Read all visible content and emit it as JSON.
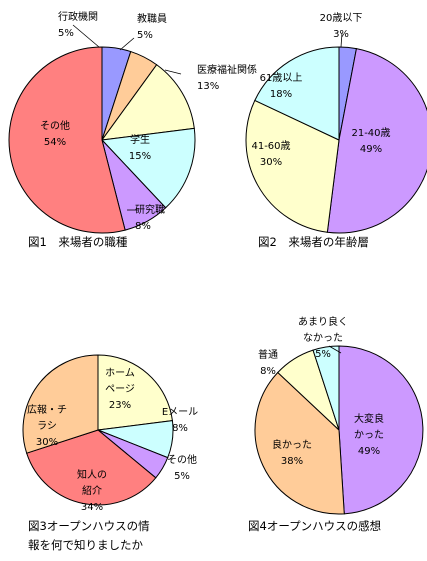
{
  "chart_data": [
    {
      "type": "pie",
      "title": "図1　来場者の職種",
      "slices": [
        {
          "label": "行政機関",
          "value": 5,
          "display": "5%",
          "color": "#9999ff"
        },
        {
          "label": "教職員",
          "value": 5,
          "display": "5%",
          "color": "#ffcc99"
        },
        {
          "label": "医療福祉関係",
          "value": 13,
          "display": "13%",
          "color": "#ffffcc"
        },
        {
          "label": "学生",
          "value": 15,
          "display": "15%",
          "color": "#ccffff"
        },
        {
          "label": "研究職",
          "value": 8,
          "display": "8%",
          "color": "#cc99ff"
        },
        {
          "label": "その他",
          "value": 54,
          "display": "54%",
          "color": "#ff8080"
        }
      ]
    },
    {
      "type": "pie",
      "title": "図2　来場者の年齢層",
      "slices": [
        {
          "label": "20歳以下",
          "value": 3,
          "display": "3%",
          "color": "#9999ff"
        },
        {
          "label": "21-40歳",
          "value": 49,
          "display": "49%",
          "color": "#cc99ff"
        },
        {
          "label": "41-60歳",
          "value": 30,
          "display": "30%",
          "color": "#ffffcc"
        },
        {
          "label": "61歳以上",
          "value": 18,
          "display": "18%",
          "color": "#ccffff"
        }
      ]
    },
    {
      "type": "pie",
      "title": "図3オープンハウスの情報を何で知りましたか",
      "title_lines": [
        "図3オープンハウスの情",
        "報を何で知りましたか"
      ],
      "slices": [
        {
          "label": "ホームページ",
          "label_lines": [
            "ホーム",
            "ページ"
          ],
          "value": 23,
          "display": "23%",
          "color": "#ffffcc"
        },
        {
          "label": "Eメール",
          "value": 8,
          "display": "8%",
          "color": "#ccffff"
        },
        {
          "label": "その他",
          "value": 5,
          "display": "5%",
          "color": "#cc99ff"
        },
        {
          "label": "知人の紹介",
          "label_lines": [
            "知人の",
            "紹介"
          ],
          "value": 34,
          "display": "34%",
          "color": "#ff8080"
        },
        {
          "label": "広報・チラシ",
          "label_lines": [
            "広報・チ",
            "ラシ"
          ],
          "value": 30,
          "display": "30%",
          "color": "#ffcc99"
        }
      ]
    },
    {
      "type": "pie",
      "title": "図4オープンハウスの感想",
      "slices": [
        {
          "label": "大変良かった",
          "label_lines": [
            "大変良",
            "かった"
          ],
          "value": 49,
          "display": "49%",
          "color": "#cc99ff"
        },
        {
          "label": "良かった",
          "value": 38,
          "display": "38%",
          "color": "#ffcc99"
        },
        {
          "label": "普通",
          "value": 8,
          "display": "8%",
          "color": "#ffffcc"
        },
        {
          "label": "あまり良くなかった",
          "label_lines": [
            "あまり良く",
            "なかった"
          ],
          "value": 5,
          "display": "5%",
          "color": "#ccffff"
        }
      ]
    }
  ]
}
